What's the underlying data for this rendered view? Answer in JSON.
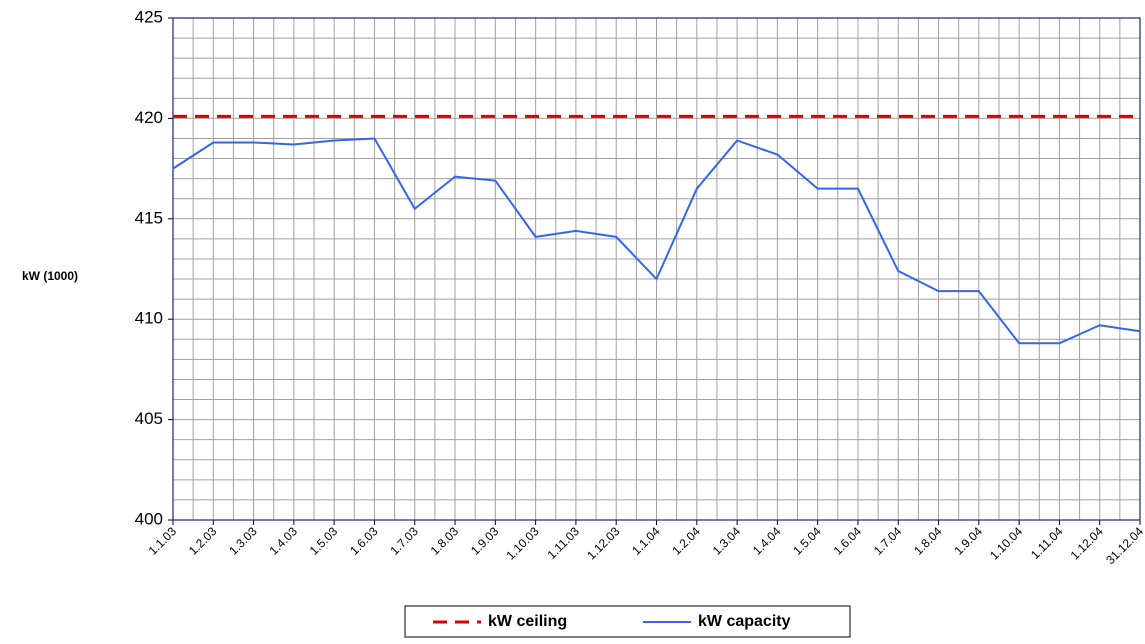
{
  "chart_data": {
    "type": "line",
    "y_label": "kW (1000)",
    "categories": [
      "1.1.03",
      "1.2.03",
      "1.3.03",
      "1.4.03",
      "1.5.03",
      "1.6.03",
      "1.7.03",
      "1.8.03",
      "1.9.03",
      "1.10.03",
      "1.11.03",
      "1.12.03",
      "1.1.04",
      "1.2.04",
      "1.3.04",
      "1.4.04",
      "1.5.04",
      "1.6.04",
      "1.7.04",
      "1.8.04",
      "1.9.04",
      "1.10.04",
      "1.11.04",
      "1.12.04",
      "31.12.04"
    ],
    "series": [
      {
        "name": "kW ceiling",
        "color": "#dd0000",
        "dash": true,
        "values": [
          420.1,
          420.1,
          420.1,
          420.1,
          420.1,
          420.1,
          420.1,
          420.1,
          420.1,
          420.1,
          420.1,
          420.1,
          420.1,
          420.1,
          420.1,
          420.1,
          420.1,
          420.1,
          420.1,
          420.1,
          420.1,
          420.1,
          420.1,
          420.1,
          420.1
        ]
      },
      {
        "name": "kW capacity",
        "color": "#3366ee",
        "dash": false,
        "values": [
          417.5,
          418.8,
          418.8,
          418.7,
          418.9,
          419.0,
          415.5,
          417.1,
          416.9,
          414.1,
          414.4,
          414.1,
          412.0,
          416.5,
          418.9,
          418.2,
          416.5,
          416.5,
          412.4,
          411.4,
          411.4,
          408.8,
          408.8,
          409.7,
          409.4
        ]
      }
    ],
    "ylim": [
      400,
      425
    ],
    "yticks": [
      400,
      405,
      410,
      415,
      420,
      425
    ],
    "grid": true,
    "minor_grid": true,
    "legend": "bottom"
  }
}
